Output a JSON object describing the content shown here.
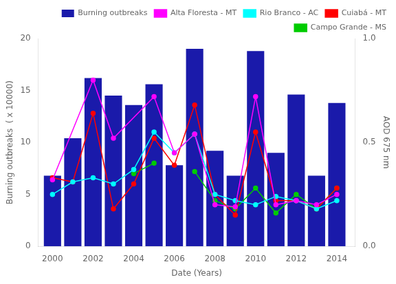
{
  "chart_data": {
    "type": "bar",
    "xlabel": "Date (Years)",
    "ylabel": "Burning outbreaks  ( x 10000)",
    "y2label": "AOD 675 nm",
    "xlim": [
      1999.3,
      2014.9
    ],
    "xticks": [
      2000,
      2002,
      2004,
      2006,
      2008,
      2010,
      2012,
      2014
    ],
    "ylim": [
      0,
      20
    ],
    "yticks": [
      0,
      5,
      10,
      15,
      20
    ],
    "y2lim": [
      0,
      1
    ],
    "y2ticks": [
      {
        "value": 0,
        "label": "0.0"
      },
      0.5,
      {
        "value": 1.0,
        "label": "1.0"
      }
    ],
    "grid": false,
    "legend": "upper right",
    "series": [
      {
        "name": "Burning outbreaks",
        "type": "bar",
        "color": "#1a1aaa",
        "x": [
          2000,
          2001,
          2002,
          2003,
          2004,
          2005,
          2006,
          2007,
          2008,
          2009,
          2010,
          2011,
          2012,
          2013,
          2014
        ],
        "values": [
          6.8,
          10.4,
          16.2,
          14.5,
          13.6,
          15.6,
          7.8,
          19.0,
          9.2,
          6.8,
          18.8,
          9.0,
          14.6,
          6.8,
          13.8
        ]
      },
      {
        "name": "Alta Floresta - MT",
        "type": "line",
        "axis": "y2",
        "color": "#ff00ff",
        "marker": "circle",
        "x": [
          2000,
          2002,
          2003,
          2005,
          2006,
          2007,
          2008,
          2009,
          2010,
          2011,
          2012,
          2013,
          2014
        ],
        "values": [
          0.32,
          0.8,
          0.52,
          0.72,
          0.45,
          0.54,
          0.2,
          0.19,
          0.72,
          0.2,
          0.22,
          0.2,
          0.25
        ]
      },
      {
        "name": "Rio Branco - AC",
        "type": "line",
        "axis": "y2",
        "color": "#00ffff",
        "marker": "circle",
        "x": [
          2000,
          2001,
          2002,
          2003,
          2004,
          2005,
          2006,
          2007,
          2008,
          2009,
          2010,
          2011,
          2012,
          2013,
          2014
        ],
        "values": [
          0.25,
          0.31,
          0.33,
          0.3,
          0.37,
          0.55,
          0.45,
          0.54,
          0.25,
          0.22,
          0.2,
          0.24,
          0.22,
          0.18,
          0.22
        ]
      },
      {
        "name": "Cuiabá - MT",
        "type": "line",
        "axis": "y2",
        "color": "#ff0000",
        "marker": "circle",
        "x": [
          2000,
          2001,
          2002,
          2003,
          2004,
          2005,
          2006,
          2007,
          2008,
          2009,
          2010,
          2011,
          2012,
          2013,
          2014
        ],
        "values": [
          0.33,
          0.31,
          0.64,
          0.18,
          0.3,
          0.52,
          0.39,
          0.68,
          0.25,
          0.15,
          0.55,
          0.22,
          0.22,
          0.18,
          0.28
        ]
      },
      {
        "name": "Campo Grande - MS",
        "type": "line",
        "axis": "y2",
        "color": "#00cc00",
        "marker": "circle",
        "x": [
          2004,
          2005,
          2006,
          2007,
          2008,
          2009,
          2010,
          2011,
          2012,
          2013,
          2014
        ],
        "values": [
          0.35,
          0.4,
          null,
          0.36,
          0.22,
          0.18,
          0.28,
          0.16,
          0.25,
          0.18,
          0.28
        ]
      }
    ]
  }
}
